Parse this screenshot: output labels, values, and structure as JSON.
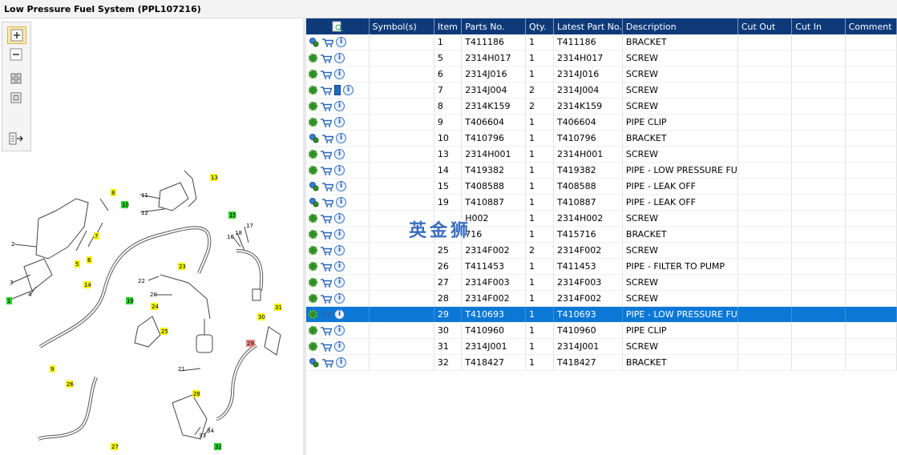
{
  "title": "Low Pressure Fuel System (PPL107216)",
  "toolbar": {
    "zoom_in": "zoom-in-icon",
    "zoom_out": "zoom-out-icon",
    "fit": "fit-icon",
    "window": "window-icon",
    "export": "export-icon"
  },
  "columns": [
    "",
    "Symbol(s)",
    "Item",
    "Parts No.",
    "Qty.",
    "Latest Part No.",
    "Description",
    "Cut Out",
    "Cut In",
    "Comment"
  ],
  "rows": [
    {
      "icons": [
        "gears",
        "cart",
        "info"
      ],
      "item": "1",
      "part": "T411186",
      "qty": "1",
      "latest": "T411186",
      "desc": "BRACKET"
    },
    {
      "icons": [
        "gear",
        "cart",
        "info"
      ],
      "item": "5",
      "part": "2314H017",
      "qty": "1",
      "latest": "2314H017",
      "desc": "SCREW"
    },
    {
      "icons": [
        "gear",
        "cart",
        "info"
      ],
      "item": "6",
      "part": "2314J016",
      "qty": "1",
      "latest": "2314J016",
      "desc": "SCREW"
    },
    {
      "icons": [
        "gear",
        "cart",
        "book",
        "info"
      ],
      "item": "7",
      "part": "2314J004",
      "qty": "2",
      "latest": "2314J004",
      "desc": "SCREW"
    },
    {
      "icons": [
        "gear",
        "cart",
        "info"
      ],
      "item": "8",
      "part": "2314K159",
      "qty": "2",
      "latest": "2314K159",
      "desc": "SCREW"
    },
    {
      "icons": [
        "gear",
        "cart",
        "info"
      ],
      "item": "9",
      "part": "T406604",
      "qty": "1",
      "latest": "T406604",
      "desc": "PIPE CLIP"
    },
    {
      "icons": [
        "gears",
        "cart",
        "info"
      ],
      "item": "10",
      "part": "T410796",
      "qty": "1",
      "latest": "T410796",
      "desc": "BRACKET"
    },
    {
      "icons": [
        "gear",
        "cart",
        "info"
      ],
      "item": "13",
      "part": "2314H001",
      "qty": "1",
      "latest": "2314H001",
      "desc": "SCREW"
    },
    {
      "icons": [
        "gear",
        "cart",
        "info"
      ],
      "item": "14",
      "part": "T419382",
      "qty": "1",
      "latest": "T419382",
      "desc": "PIPE - LOW PRESSURE FU"
    },
    {
      "icons": [
        "gears",
        "cart",
        "info"
      ],
      "item": "15",
      "part": "T408588",
      "qty": "1",
      "latest": "T408588",
      "desc": "PIPE - LEAK OFF"
    },
    {
      "icons": [
        "gears",
        "cart",
        "info"
      ],
      "item": "19",
      "part": "T410887",
      "qty": "1",
      "latest": "T410887",
      "desc": "PIPE - LEAK OFF"
    },
    {
      "icons": [
        "gear",
        "cart",
        "info"
      ],
      "item": "",
      "part": "H002",
      "qty": "1",
      "latest": "2314H002",
      "desc": "SCREW"
    },
    {
      "icons": [
        "gear",
        "cart",
        "info"
      ],
      "item": "",
      "part": "716",
      "qty": "1",
      "latest": "T415716",
      "desc": "BRACKET"
    },
    {
      "icons": [
        "gear",
        "cart",
        "info"
      ],
      "item": "25",
      "part": "2314F002",
      "qty": "2",
      "latest": "2314F002",
      "desc": "SCREW"
    },
    {
      "icons": [
        "gear",
        "cart",
        "info"
      ],
      "item": "26",
      "part": "T411453",
      "qty": "1",
      "latest": "T411453",
      "desc": "PIPE - FILTER TO PUMP"
    },
    {
      "icons": [
        "gear",
        "cart",
        "info"
      ],
      "item": "27",
      "part": "2314F003",
      "qty": "1",
      "latest": "2314F003",
      "desc": "SCREW"
    },
    {
      "icons": [
        "gear",
        "cart",
        "info"
      ],
      "item": "28",
      "part": "2314F002",
      "qty": "1",
      "latest": "2314F002",
      "desc": "SCREW"
    },
    {
      "icons": [
        "gear",
        "cart",
        "info"
      ],
      "item": "29",
      "part": "T410693",
      "qty": "1",
      "latest": "T410693",
      "desc": "PIPE - LOW PRESSURE FU",
      "selected": true
    },
    {
      "icons": [
        "gear",
        "cart",
        "info"
      ],
      "item": "30",
      "part": "T410960",
      "qty": "1",
      "latest": "T410960",
      "desc": "PIPE CLIP"
    },
    {
      "icons": [
        "gear",
        "cart",
        "info"
      ],
      "item": "31",
      "part": "2314J001",
      "qty": "1",
      "latest": "2314J001",
      "desc": "SCREW"
    },
    {
      "icons": [
        "gears",
        "cart",
        "info"
      ],
      "item": "32",
      "part": "T418427",
      "qty": "1",
      "latest": "T418427",
      "desc": "BRACKET"
    }
  ],
  "watermark": "英金狮",
  "diagram_labels": {
    "yellow": [
      "8",
      "13",
      "7",
      "6",
      "5",
      "14",
      "23",
      "24",
      "25",
      "31",
      "30",
      "9",
      "26",
      "28",
      "27"
    ],
    "green": [
      "10",
      "15",
      "19",
      "1",
      "32"
    ],
    "red": [
      "29"
    ],
    "plain": [
      "11",
      "12",
      "2",
      "3",
      "4",
      "16",
      "17",
      "18",
      "22",
      "20",
      "21",
      "33",
      "34"
    ]
  },
  "colors": {
    "header": "#0e3a7a",
    "selected": "#0b78d6",
    "callout_yellow": "#f5f500",
    "callout_green": "#2ad12a",
    "callout_red": "#f08a8a"
  }
}
